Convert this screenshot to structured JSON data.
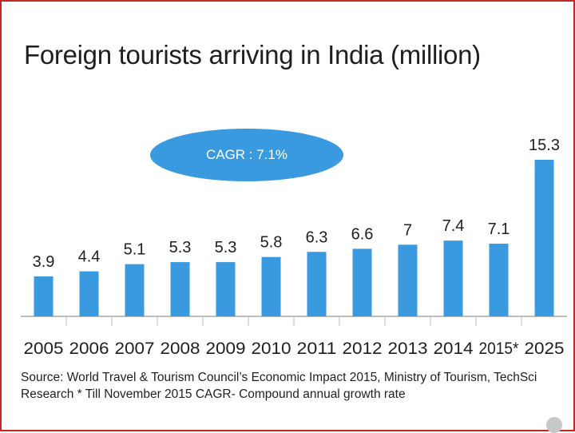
{
  "colors": {
    "bar": "#3a9ae0",
    "badge": "#3a9ae0",
    "axis": "#bdbdbd",
    "text": "#1f1f1f"
  },
  "annotations": {
    "cagr": "CAGR : 7.1%"
  },
  "source_note": "Source: World Travel & Tourism Council’s Economic Impact 2015, Ministry of Tourism, TechSci Research * Till November 2015 CAGR- Compound annual growth rate",
  "chart_data": {
    "type": "bar",
    "title": "Foreign tourists arriving in India (million)",
    "categories": [
      "2005",
      "2006",
      "2007",
      "2008",
      "2009",
      "2010",
      "2011",
      "2012",
      "2013",
      "2014",
      "2015*",
      "2025"
    ],
    "values": [
      3.9,
      4.4,
      5.1,
      5.3,
      5.3,
      5.8,
      6.3,
      6.6,
      7,
      7.4,
      7.1,
      15.3
    ],
    "value_labels": [
      "3.9",
      "4.4",
      "5.1",
      "5.3",
      "5.3",
      "5.8",
      "6.3",
      "6.6",
      "7",
      "7.4",
      "7.1",
      "15.3"
    ],
    "xlabel": "",
    "ylabel": "",
    "ylim": [
      0,
      16
    ],
    "grid": false,
    "legend": "none"
  }
}
